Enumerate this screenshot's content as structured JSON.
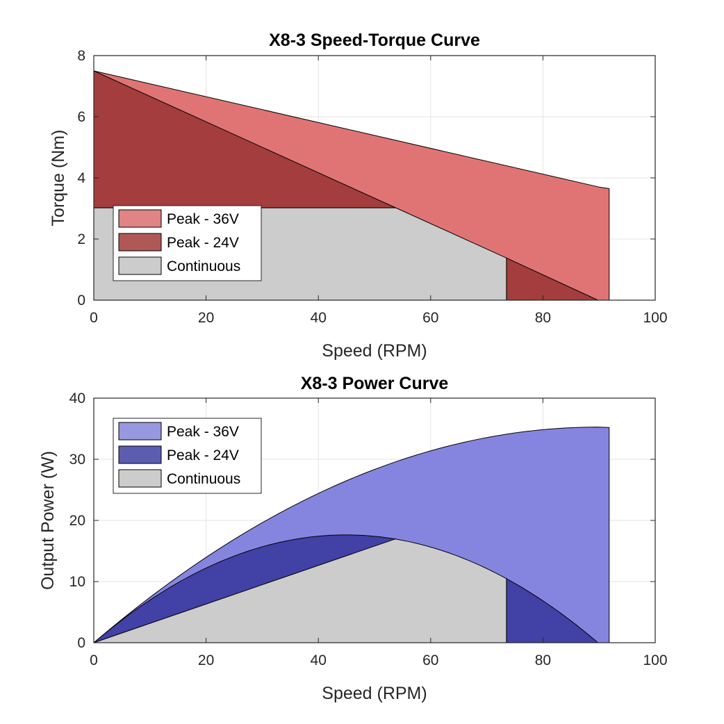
{
  "chart_data": [
    {
      "type": "area",
      "title": "X8-3 Speed-Torque Curve",
      "xlabel": "Speed (RPM)",
      "ylabel": "Torque (Nm)",
      "xlim": [
        0,
        100
      ],
      "ylim": [
        0,
        8
      ],
      "xticks": [
        0,
        20,
        40,
        60,
        80,
        100
      ],
      "yticks": [
        0,
        2,
        4,
        6,
        8
      ],
      "grid": true,
      "legend_position": "bottom-left",
      "series": [
        {
          "name": "Peak - 36V",
          "color": "#e07474",
          "polygon": [
            [
              0,
              0
            ],
            [
              0,
              7.5
            ],
            [
              90,
              3.7
            ],
            [
              91.8,
              3.65
            ],
            [
              91.8,
              0
            ]
          ]
        },
        {
          "name": "Peak - 24V",
          "color": "#a43d3d",
          "polygon": [
            [
              0,
              3.02
            ],
            [
              0,
              7.5
            ],
            [
              53.8,
              3.02
            ]
          ],
          "extra_polygons": [
            [
              [
                73.5,
                0
              ],
              [
                73.5,
                1.38
              ],
              [
                89.8,
                0
              ]
            ]
          ]
        },
        {
          "name": "Continuous",
          "color": "#cccccc",
          "polygon": [
            [
              0,
              0
            ],
            [
              0,
              3.02
            ],
            [
              53.8,
              3.02
            ],
            [
              73.5,
              1.38
            ],
            [
              73.5,
              0
            ]
          ]
        }
      ],
      "legend_colors": [
        "#e08484",
        "#b05858",
        "#cccccc"
      ]
    },
    {
      "type": "area",
      "title": "X8-3 Power Curve",
      "xlabel": "Speed (RPM)",
      "ylabel": "Output Power (W)",
      "xlim": [
        0,
        100
      ],
      "ylim": [
        0,
        40
      ],
      "xticks": [
        0,
        20,
        40,
        60,
        80,
        100
      ],
      "yticks": [
        0,
        10,
        20,
        30,
        40
      ],
      "grid": true,
      "legend_position": "top-left",
      "series": [
        {
          "name": "Peak - 36V",
          "color": "#8585e0",
          "power_curve": {
            "stall_torque": 7.5,
            "no_load_rpm": 179.6,
            "x_end": 89.8
          },
          "tail": [
            [
              91.8,
              35.2
            ],
            [
              91.8,
              34.5
            ],
            [
              91.8,
              0
            ]
          ]
        },
        {
          "name": "Peak - 24V",
          "color": "#4141a6",
          "power_curve": {
            "stall_torque": 7.5,
            "no_load_rpm": 89.8,
            "x_start": 0,
            "x_end": 53.8
          },
          "lower_line": [
            [
              0,
              0
            ],
            [
              53.8,
              17.0
            ]
          ],
          "extra": {
            "x_start": 73.5,
            "x_end": 89.8
          }
        },
        {
          "name": "Continuous",
          "color": "#cccccc",
          "lower_line": [
            [
              0,
              0
            ],
            [
              53.8,
              17.0
            ]
          ],
          "upper_curve": {
            "x_start": 53.8,
            "x_end": 73.5
          }
        }
      ],
      "legend_colors": [
        "#9898e0",
        "#5c5cb0",
        "#cccccc"
      ]
    }
  ]
}
